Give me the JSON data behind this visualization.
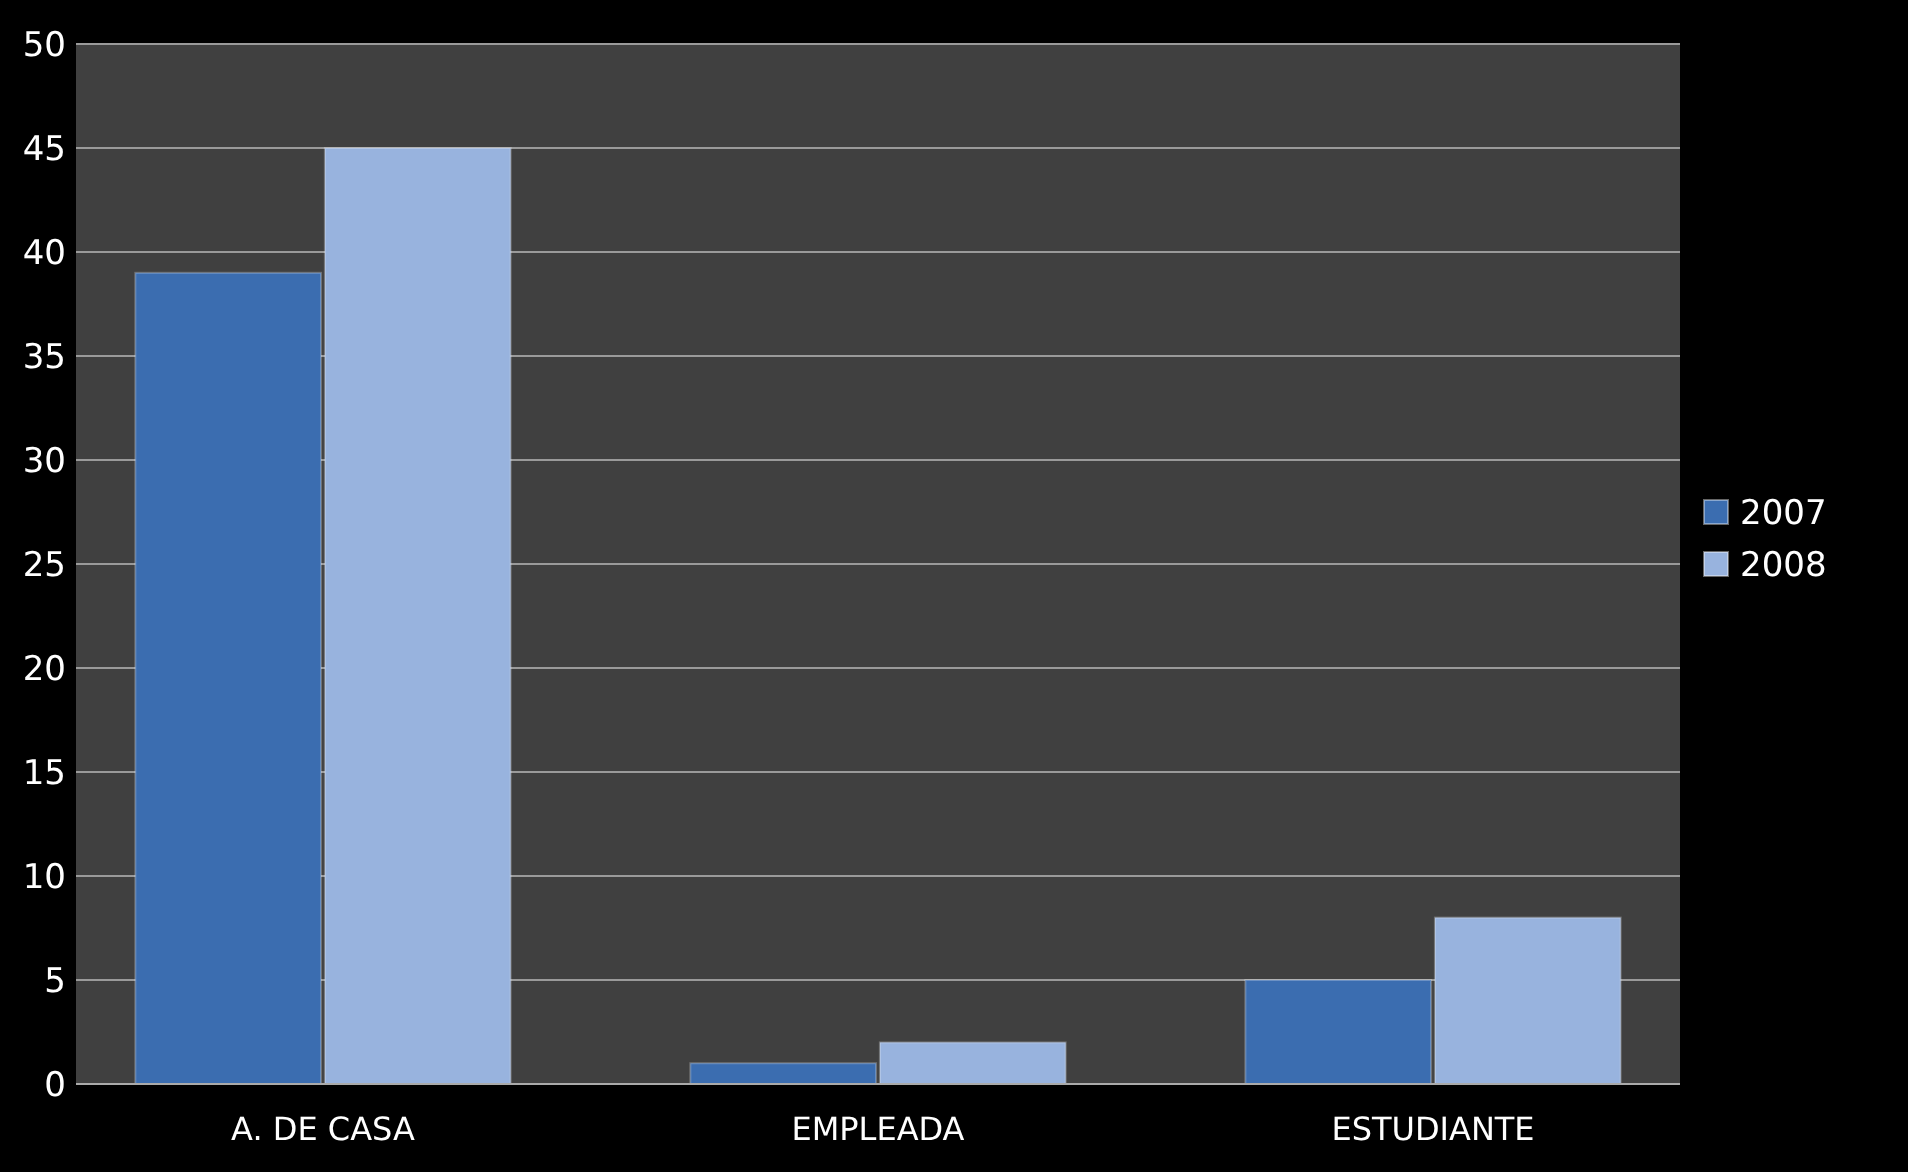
{
  "chart_data": {
    "type": "bar",
    "categories": [
      "A. DE CASA",
      "EMPLEADA",
      "ESTUDIANTE"
    ],
    "series": [
      {
        "name": "2007",
        "color": "#3b6db0",
        "values": [
          39,
          1,
          5
        ]
      },
      {
        "name": "2008",
        "color": "#98b3de",
        "values": [
          45,
          2,
          8
        ]
      }
    ],
    "ylim": [
      0,
      50
    ],
    "yticks": [
      0,
      5,
      10,
      15,
      20,
      25,
      30,
      35,
      40,
      45,
      50
    ],
    "grid": "y",
    "legend": "right"
  }
}
